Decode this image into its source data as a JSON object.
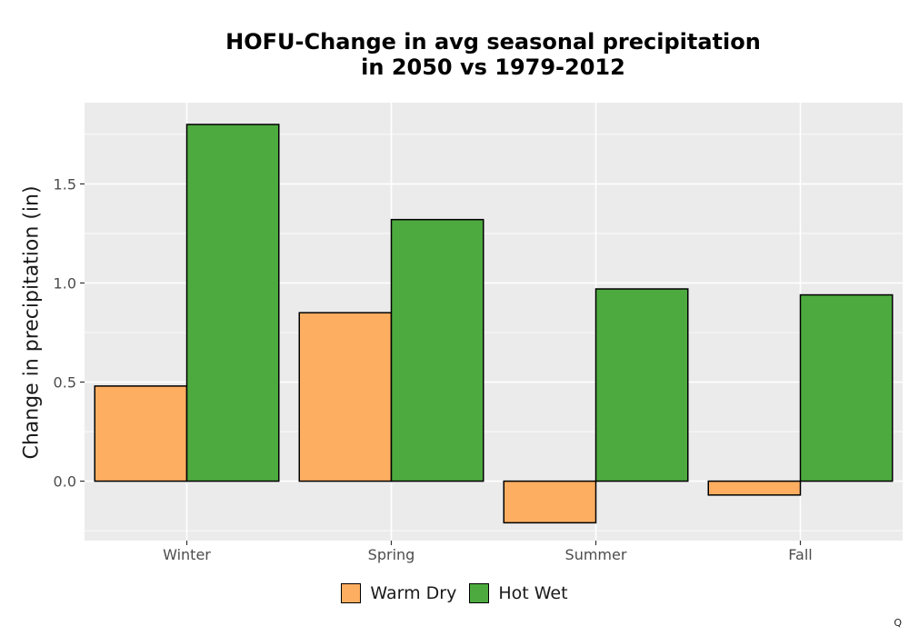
{
  "chart_data": {
    "type": "bar",
    "title_lines": [
      "HOFU-Change in avg seasonal precipitation",
      "in 2050 vs 1979-2012"
    ],
    "xlabel": "",
    "ylabel": "Change in precipitation (in)",
    "categories": [
      "Winter",
      "Spring",
      "Summer",
      "Fall"
    ],
    "series": [
      {
        "name": "Warm Dry",
        "color": "#fdae61",
        "values": [
          0.48,
          0.85,
          -0.21,
          -0.07
        ]
      },
      {
        "name": "Hot Wet",
        "color": "#4daa3f",
        "values": [
          1.8,
          1.32,
          0.97,
          0.94
        ]
      }
    ],
    "ylim": [
      -0.3,
      1.91
    ],
    "yticks": [
      0.0,
      0.5,
      1.0,
      1.5
    ],
    "ytick_labels": [
      "0.0",
      "0.5",
      "1.0",
      "1.5"
    ],
    "grid": true,
    "legend_position": "bottom"
  },
  "corner_label": "Q"
}
